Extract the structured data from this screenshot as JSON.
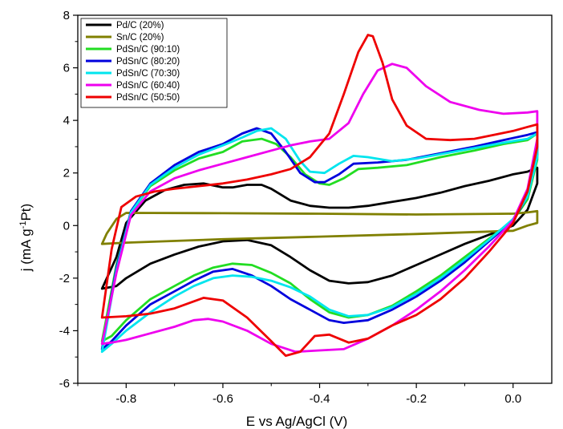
{
  "chart_data": {
    "type": "line",
    "xlabel": "E vs Ag/AgCl (V)",
    "ylabel": "j (mA g",
    "ylabel_sup": "-1",
    "ylabel_end": "Pt)",
    "xlim": [
      -0.9,
      0.08
    ],
    "ylim": [
      -6,
      8
    ],
    "xticks": [
      -0.8,
      -0.6,
      -0.4,
      -0.2,
      0.0
    ],
    "xtick_labels": [
      "-0.8",
      "-0.6",
      "-0.4",
      "-0.2",
      "0.0"
    ],
    "yticks": [
      -6,
      -4,
      -2,
      0,
      2,
      4,
      6,
      8
    ],
    "ytick_labels": [
      "-6",
      "-4",
      "-2",
      "0",
      "2",
      "4",
      "6",
      "8"
    ],
    "legend_position": "top-left",
    "series": [
      {
        "name": "Pd/C (20%)",
        "color": "#000000",
        "x": [
          -0.85,
          -0.82,
          -0.8,
          -0.76,
          -0.72,
          -0.68,
          -0.64,
          -0.6,
          -0.58,
          -0.55,
          -0.52,
          -0.5,
          -0.46,
          -0.42,
          -0.38,
          -0.34,
          -0.3,
          -0.25,
          -0.2,
          -0.15,
          -0.1,
          -0.05,
          0.0,
          0.03,
          0.05,
          0.05,
          0.03,
          0.0,
          -0.05,
          -0.1,
          -0.15,
          -0.2,
          -0.25,
          -0.3,
          -0.34,
          -0.38,
          -0.42,
          -0.46,
          -0.5,
          -0.55,
          -0.6,
          -0.65,
          -0.7,
          -0.75,
          -0.8,
          -0.82,
          -0.85
        ],
        "y": [
          -2.4,
          -1.2,
          0.1,
          0.95,
          1.35,
          1.55,
          1.6,
          1.45,
          1.45,
          1.55,
          1.55,
          1.4,
          0.95,
          0.75,
          0.68,
          0.68,
          0.75,
          0.9,
          1.05,
          1.25,
          1.5,
          1.7,
          1.95,
          2.05,
          2.2,
          1.6,
          0.6,
          0.0,
          -0.35,
          -0.7,
          -1.1,
          -1.5,
          -1.9,
          -2.15,
          -2.2,
          -2.1,
          -1.7,
          -1.2,
          -0.75,
          -0.55,
          -0.6,
          -0.8,
          -1.1,
          -1.45,
          -2.0,
          -2.3,
          -2.4
        ]
      },
      {
        "name": "Sn/C (20%)",
        "color": "#808000",
        "x": [
          -0.85,
          -0.84,
          -0.82,
          -0.8,
          -0.6,
          -0.4,
          -0.2,
          0.0,
          0.03,
          0.05,
          0.05,
          0.03,
          0.0,
          -0.2,
          -0.4,
          -0.6,
          -0.8,
          -0.85
        ],
        "y": [
          -0.7,
          -0.3,
          0.25,
          0.48,
          0.47,
          0.45,
          0.42,
          0.45,
          0.5,
          0.55,
          0.1,
          0.0,
          -0.2,
          -0.32,
          -0.42,
          -0.52,
          -0.65,
          -0.7
        ]
      },
      {
        "name": "PdSn/C (90:10)",
        "color": "#22dd22",
        "x": [
          -0.85,
          -0.82,
          -0.79,
          -0.75,
          -0.7,
          -0.65,
          -0.6,
          -0.56,
          -0.52,
          -0.49,
          -0.46,
          -0.43,
          -0.4,
          -0.38,
          -0.35,
          -0.32,
          -0.28,
          -0.22,
          -0.15,
          -0.08,
          -0.02,
          0.03,
          0.05,
          0.05,
          0.03,
          0.0,
          -0.05,
          -0.1,
          -0.15,
          -0.2,
          -0.25,
          -0.3,
          -0.34,
          -0.38,
          -0.42,
          -0.46,
          -0.5,
          -0.54,
          -0.58,
          -0.62,
          -0.66,
          -0.7,
          -0.75,
          -0.8,
          -0.83,
          -0.85
        ],
        "y": [
          -4.4,
          -1.5,
          0.5,
          1.5,
          2.1,
          2.55,
          2.8,
          3.2,
          3.3,
          3.1,
          2.6,
          1.95,
          1.6,
          1.55,
          1.8,
          2.15,
          2.2,
          2.3,
          2.6,
          2.85,
          3.1,
          3.25,
          3.5,
          2.5,
          1.0,
          0.2,
          -0.5,
          -1.2,
          -1.9,
          -2.5,
          -3.05,
          -3.4,
          -3.5,
          -3.3,
          -2.8,
          -2.2,
          -1.8,
          -1.5,
          -1.45,
          -1.6,
          -1.9,
          -2.3,
          -2.8,
          -3.6,
          -4.2,
          -4.4
        ]
      },
      {
        "name": "PdSn/C (80:20)",
        "color": "#0000dd",
        "x": [
          -0.85,
          -0.82,
          -0.79,
          -0.75,
          -0.7,
          -0.65,
          -0.6,
          -0.56,
          -0.53,
          -0.5,
          -0.47,
          -0.44,
          -0.41,
          -0.39,
          -0.36,
          -0.33,
          -0.28,
          -0.22,
          -0.15,
          -0.08,
          -0.02,
          0.03,
          0.05,
          0.05,
          0.03,
          0.0,
          -0.05,
          -0.1,
          -0.15,
          -0.2,
          -0.25,
          -0.3,
          -0.35,
          -0.38,
          -0.42,
          -0.46,
          -0.5,
          -0.54,
          -0.58,
          -0.62,
          -0.66,
          -0.7,
          -0.75,
          -0.8,
          -0.83,
          -0.85
        ],
        "y": [
          -4.7,
          -1.6,
          0.55,
          1.6,
          2.3,
          2.8,
          3.1,
          3.5,
          3.7,
          3.5,
          2.8,
          2.0,
          1.65,
          1.65,
          1.95,
          2.35,
          2.4,
          2.5,
          2.75,
          3.0,
          3.25,
          3.45,
          3.55,
          2.7,
          1.1,
          0.2,
          -0.6,
          -1.4,
          -2.1,
          -2.7,
          -3.2,
          -3.6,
          -3.7,
          -3.6,
          -3.2,
          -2.8,
          -2.3,
          -1.9,
          -1.65,
          -1.75,
          -2.1,
          -2.5,
          -3.0,
          -3.8,
          -4.4,
          -4.7
        ]
      },
      {
        "name": "PdSn/C (70:30)",
        "color": "#00e5ee",
        "x": [
          -0.85,
          -0.82,
          -0.79,
          -0.75,
          -0.7,
          -0.65,
          -0.6,
          -0.56,
          -0.53,
          -0.5,
          -0.47,
          -0.44,
          -0.42,
          -0.39,
          -0.36,
          -0.33,
          -0.3,
          -0.25,
          -0.2,
          -0.14,
          -0.08,
          -0.02,
          0.03,
          0.05,
          0.05,
          0.03,
          0.0,
          -0.05,
          -0.1,
          -0.15,
          -0.2,
          -0.25,
          -0.3,
          -0.34,
          -0.38,
          -0.42,
          -0.46,
          -0.5,
          -0.54,
          -0.58,
          -0.62,
          -0.66,
          -0.7,
          -0.75,
          -0.8,
          -0.83,
          -0.85
        ],
        "y": [
          -4.8,
          -1.7,
          0.5,
          1.55,
          2.2,
          2.7,
          3.05,
          3.35,
          3.6,
          3.7,
          3.3,
          2.45,
          2.05,
          2.0,
          2.35,
          2.65,
          2.6,
          2.45,
          2.55,
          2.75,
          2.95,
          3.15,
          3.3,
          3.5,
          2.6,
          1.1,
          0.25,
          -0.55,
          -1.3,
          -2.0,
          -2.6,
          -3.1,
          -3.4,
          -3.45,
          -3.2,
          -2.7,
          -2.35,
          -2.1,
          -1.95,
          -1.9,
          -2.0,
          -2.3,
          -2.7,
          -3.3,
          -4.0,
          -4.5,
          -4.8
        ]
      },
      {
        "name": "PdSn/C (60:40)",
        "color": "#ee00ee",
        "x": [
          -0.85,
          -0.82,
          -0.79,
          -0.75,
          -0.7,
          -0.65,
          -0.6,
          -0.55,
          -0.5,
          -0.46,
          -0.42,
          -0.38,
          -0.34,
          -0.31,
          -0.28,
          -0.25,
          -0.22,
          -0.18,
          -0.13,
          -0.07,
          -0.02,
          0.03,
          0.05,
          0.05,
          0.03,
          0.0,
          -0.05,
          -0.1,
          -0.15,
          -0.2,
          -0.25,
          -0.3,
          -0.35,
          -0.4,
          -0.45,
          -0.5,
          -0.55,
          -0.6,
          -0.63,
          -0.66,
          -0.7,
          -0.75,
          -0.8,
          -0.83,
          -0.85
        ],
        "y": [
          -4.5,
          -1.8,
          0.4,
          1.3,
          1.8,
          2.1,
          2.35,
          2.6,
          2.85,
          3.05,
          3.2,
          3.3,
          3.9,
          5.0,
          5.9,
          6.15,
          6.0,
          5.3,
          4.7,
          4.4,
          4.25,
          4.3,
          4.35,
          3.3,
          1.4,
          0.2,
          -0.8,
          -1.7,
          -2.5,
          -3.2,
          -3.8,
          -4.3,
          -4.7,
          -4.75,
          -4.8,
          -4.5,
          -4.0,
          -3.65,
          -3.55,
          -3.6,
          -3.85,
          -4.1,
          -4.35,
          -4.45,
          -4.5
        ]
      },
      {
        "name": "PdSn/C (50:50)",
        "color": "#ee0000",
        "x": [
          -0.85,
          -0.83,
          -0.81,
          -0.78,
          -0.74,
          -0.7,
          -0.65,
          -0.6,
          -0.55,
          -0.5,
          -0.46,
          -0.42,
          -0.38,
          -0.35,
          -0.32,
          -0.3,
          -0.29,
          -0.27,
          -0.25,
          -0.22,
          -0.18,
          -0.13,
          -0.08,
          -0.04,
          0.0,
          0.03,
          0.05,
          0.05,
          0.03,
          0.0,
          -0.05,
          -0.1,
          -0.15,
          -0.2,
          -0.25,
          -0.3,
          -0.34,
          -0.38,
          -0.41,
          -0.44,
          -0.47,
          -0.5,
          -0.55,
          -0.6,
          -0.64,
          -0.7,
          -0.75,
          -0.8,
          -0.85
        ],
        "y": [
          -3.5,
          -0.9,
          0.7,
          1.1,
          1.3,
          1.4,
          1.5,
          1.6,
          1.75,
          1.95,
          2.15,
          2.6,
          3.5,
          5.0,
          6.6,
          7.25,
          7.2,
          6.2,
          4.8,
          3.8,
          3.3,
          3.25,
          3.3,
          3.45,
          3.6,
          3.75,
          3.85,
          3.0,
          1.3,
          0.1,
          -1.0,
          -2.0,
          -2.8,
          -3.4,
          -3.8,
          -4.3,
          -4.45,
          -4.15,
          -4.2,
          -4.8,
          -4.95,
          -4.4,
          -3.5,
          -2.85,
          -2.75,
          -3.15,
          -3.35,
          -3.45,
          -3.5
        ]
      }
    ]
  }
}
